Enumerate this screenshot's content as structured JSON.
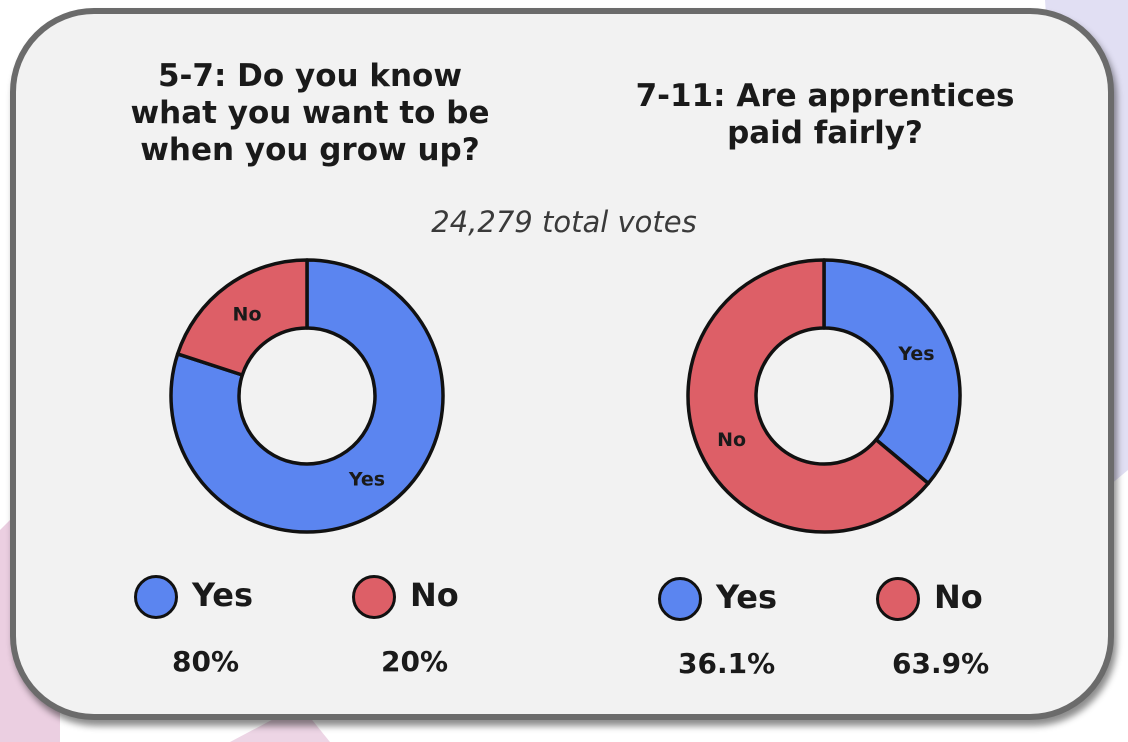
{
  "votes_text": "24,279 total votes",
  "colors": {
    "yes": "#5b85f0",
    "no": "#dd5f67",
    "background": "#f2f2f2",
    "border": "#6b6b6b"
  },
  "chart_data": [
    {
      "type": "pie",
      "style": "donut",
      "title": "5-7: Do you know\nwhat you want to be\nwhen you grow up?",
      "categories": [
        "Yes",
        "No"
      ],
      "values": [
        80,
        20
      ],
      "units": "%",
      "colors": [
        "#5b85f0",
        "#dd5f67"
      ],
      "slice_labels": [
        "Yes",
        "No"
      ],
      "legend": [
        {
          "label": "Yes",
          "value_text": "80%"
        },
        {
          "label": "No",
          "value_text": "20%"
        }
      ],
      "legend_position": "bottom"
    },
    {
      "type": "pie",
      "style": "donut",
      "title": "7-11: Are apprentices\npaid fairly?",
      "categories": [
        "Yes",
        "No"
      ],
      "values": [
        36.1,
        63.9
      ],
      "units": "%",
      "colors": [
        "#5b85f0",
        "#dd5f67"
      ],
      "slice_labels": [
        "Yes",
        "No"
      ],
      "legend": [
        {
          "label": "Yes",
          "value_text": "36.1%"
        },
        {
          "label": "No",
          "value_text": "63.9%"
        }
      ],
      "legend_position": "bottom"
    }
  ]
}
